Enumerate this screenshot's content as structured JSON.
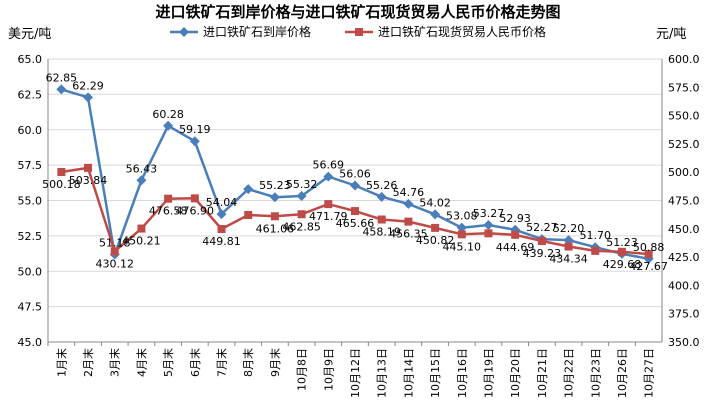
{
  "chart_data": {
    "type": "line",
    "title": "进口铁矿石到岸价格与进口铁矿石现货贸易人民币价格走势图",
    "y_left_unit": "美元/吨",
    "y_right_unit": "元/吨",
    "y_left_lim": [
      45.0,
      65.0
    ],
    "y_left_ticks": [
      "45.0",
      "47.5",
      "50.0",
      "52.5",
      "55.0",
      "57.5",
      "60.0",
      "62.5",
      "65.0"
    ],
    "y_right_lim": [
      350.0,
      600.0
    ],
    "y_right_ticks": [
      "350.0",
      "375.0",
      "400.0",
      "425.0",
      "450.0",
      "475.0",
      "500.0",
      "525.0",
      "550.0",
      "575.0",
      "600.0"
    ],
    "categories": [
      "1月末",
      "2月末",
      "3月末",
      "4月末",
      "5月末",
      "6月末",
      "7月末",
      "8月末",
      "9月末",
      "10月8日",
      "10月9日",
      "10月12日",
      "10月13日",
      "10月14日",
      "10月15日",
      "10月16日",
      "10月19日",
      "10月20日",
      "10月21日",
      "10月22日",
      "10月23日",
      "10月26日",
      "10月27日"
    ],
    "series": [
      {
        "name": "进口铁矿石到岸价格",
        "axis": "left",
        "color": "#4a7ebb",
        "marker": "diamond",
        "values": [
          62.85,
          62.29,
          51.18,
          56.43,
          60.28,
          59.19,
          54.04,
          55.8,
          55.23,
          55.32,
          56.69,
          56.06,
          55.26,
          54.76,
          54.02,
          53.08,
          53.27,
          52.93,
          52.27,
          52.2,
          51.7,
          51.23,
          50.88
        ],
        "labels": [
          "62.85",
          "62.29",
          "51.18",
          "56.43",
          "60.28",
          "59.19",
          "54.04",
          "",
          "55.23",
          "55.32",
          "56.69",
          "56.06",
          "55.26",
          "54.76",
          "54.02",
          "53.08",
          "53.27",
          "52.93",
          "52.27",
          "52.20",
          "51.70",
          "51.23",
          "50.88"
        ]
      },
      {
        "name": "进口铁矿石现货贸易人民币价格",
        "axis": "right",
        "color": "#be4b48",
        "marker": "square",
        "values": [
          500.18,
          503.84,
          430.12,
          450.21,
          476.58,
          476.9,
          449.81,
          462.2,
          461.06,
          462.85,
          471.79,
          465.66,
          458.19,
          456.35,
          450.82,
          445.1,
          446.0,
          444.69,
          439.23,
          434.34,
          430.5,
          429.68,
          427.67
        ],
        "labels": [
          "500.18",
          "503.84",
          "430.12",
          "450.21",
          "476.58",
          "476.90",
          "449.81",
          "",
          "461.06",
          "462.85",
          "471.79",
          "465.66",
          "458.19",
          "456.35",
          "450.82",
          "445.10",
          "",
          "444.69",
          "439.23",
          "434.34",
          "",
          "429.68",
          "427.67"
        ]
      }
    ],
    "grid": true,
    "legend": "top"
  }
}
